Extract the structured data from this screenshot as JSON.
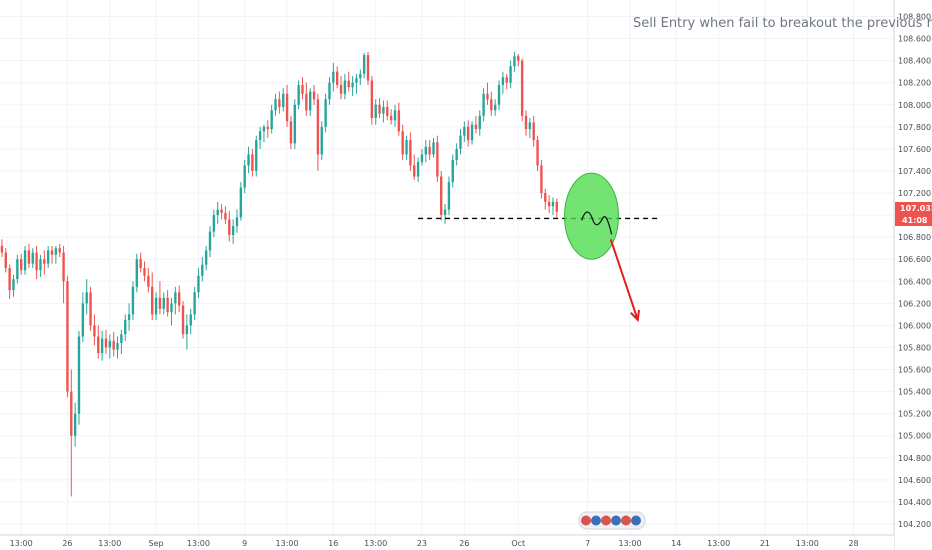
{
  "chart_data": {
    "type": "candlestick",
    "annotation": "Sell Entry when fail to breakout the previous resista",
    "price_tag": "107.032",
    "timer_tag": "41:08",
    "ylim": [
      104.1,
      108.95
    ],
    "yticks": [
      108.8,
      108.6,
      108.4,
      108.2,
      108.0,
      107.8,
      107.6,
      107.4,
      107.2,
      107.0,
      106.8,
      106.6,
      106.4,
      106.2,
      106.0,
      105.8,
      105.6,
      105.4,
      105.2,
      105.0,
      104.8,
      104.6,
      104.4,
      104.2
    ],
    "ytick_labels": [
      "108.800",
      "108.600",
      "108.400",
      "108.200",
      "108.000",
      "107.800",
      "107.600",
      "107.400",
      "107.200",
      "107.000",
      "106.800",
      "106.600",
      "106.400",
      "106.200",
      "106.000",
      "105.800",
      "105.600",
      "105.400",
      "105.200",
      "105.000",
      "104.800",
      "104.600",
      "104.400",
      "104.200"
    ],
    "xtick_labels": [
      "13:00",
      "26",
      "13:00",
      "Sep",
      "13:00",
      "9",
      "13:00",
      "16",
      "13:00",
      "23",
      "26",
      "Oct",
      "7",
      "13:00",
      "14",
      "13:00",
      "21",
      "13:00",
      "28"
    ],
    "xtick_index": [
      5,
      17,
      28,
      40,
      51,
      63,
      74,
      86,
      97,
      109,
      120,
      134,
      152,
      163,
      175,
      186,
      198,
      209,
      221
    ],
    "n_slots": 232,
    "support_level": 106.97,
    "arrow_from": [
      158,
      106.78
    ],
    "arrow_to": [
      165,
      106.05
    ],
    "ellipse_center": [
      153,
      106.99
    ],
    "ellipse_radius": [
      7,
      0.39
    ],
    "candles": [
      [
        106.72,
        106.78,
        106.62,
        106.66
      ],
      [
        106.66,
        106.7,
        106.48,
        106.52
      ],
      [
        106.52,
        106.55,
        106.24,
        106.32
      ],
      [
        106.32,
        106.46,
        106.26,
        106.42
      ],
      [
        106.42,
        106.64,
        106.38,
        106.6
      ],
      [
        106.6,
        106.65,
        106.46,
        106.5
      ],
      [
        106.5,
        106.72,
        106.46,
        106.68
      ],
      [
        106.68,
        106.74,
        106.52,
        106.56
      ],
      [
        106.56,
        106.7,
        106.52,
        106.66
      ],
      [
        106.66,
        106.72,
        106.42,
        106.5
      ],
      [
        106.5,
        106.64,
        106.44,
        106.6
      ],
      [
        106.6,
        106.68,
        106.46,
        106.56
      ],
      [
        106.56,
        106.72,
        106.52,
        106.68
      ],
      [
        106.68,
        106.72,
        106.56,
        106.64
      ],
      [
        106.64,
        106.72,
        106.56,
        106.7
      ],
      [
        106.7,
        106.74,
        106.62,
        106.66
      ],
      [
        106.66,
        106.72,
        106.2,
        106.4
      ],
      [
        106.4,
        106.45,
        105.35,
        105.4
      ],
      [
        105.4,
        105.6,
        104.45,
        105.0
      ],
      [
        105.0,
        105.3,
        104.9,
        105.2
      ],
      [
        105.2,
        105.95,
        105.1,
        105.9
      ],
      [
        105.9,
        106.3,
        105.85,
        106.2
      ],
      [
        106.2,
        106.42,
        106.1,
        106.3
      ],
      [
        106.3,
        106.35,
        105.95,
        106.0
      ],
      [
        106.0,
        106.1,
        105.82,
        105.9
      ],
      [
        105.9,
        106.0,
        105.7,
        105.75
      ],
      [
        105.75,
        105.95,
        105.68,
        105.88
      ],
      [
        105.88,
        105.96,
        105.74,
        105.8
      ],
      [
        105.8,
        105.92,
        105.7,
        105.86
      ],
      [
        105.86,
        105.94,
        105.72,
        105.78
      ],
      [
        105.78,
        105.9,
        105.7,
        105.84
      ],
      [
        105.84,
        105.96,
        105.74,
        105.92
      ],
      [
        105.92,
        106.1,
        105.86,
        106.05
      ],
      [
        106.05,
        106.2,
        105.95,
        106.1
      ],
      [
        106.1,
        106.4,
        106.05,
        106.35
      ],
      [
        106.35,
        106.65,
        106.3,
        106.6
      ],
      [
        106.6,
        106.66,
        106.48,
        106.52
      ],
      [
        106.52,
        106.58,
        106.4,
        106.45
      ],
      [
        106.45,
        106.52,
        106.3,
        106.35
      ],
      [
        106.35,
        106.48,
        106.05,
        106.1
      ],
      [
        106.1,
        106.3,
        106.05,
        106.25
      ],
      [
        106.25,
        106.4,
        106.1,
        106.15
      ],
      [
        106.15,
        106.3,
        106.1,
        106.25
      ],
      [
        106.25,
        106.32,
        106.08,
        106.12
      ],
      [
        106.12,
        106.25,
        106.0,
        106.2
      ],
      [
        106.2,
        106.35,
        106.1,
        106.3
      ],
      [
        106.3,
        106.36,
        106.12,
        106.18
      ],
      [
        106.18,
        106.22,
        105.88,
        105.92
      ],
      [
        105.92,
        106.1,
        105.78,
        106.0
      ],
      [
        106.0,
        106.15,
        105.92,
        106.1
      ],
      [
        106.1,
        106.35,
        106.05,
        106.3
      ],
      [
        106.3,
        106.52,
        106.25,
        106.45
      ],
      [
        106.45,
        106.62,
        106.4,
        106.55
      ],
      [
        106.55,
        106.72,
        106.5,
        106.68
      ],
      [
        106.68,
        106.9,
        106.62,
        106.85
      ],
      [
        106.85,
        107.05,
        106.8,
        107.0
      ],
      [
        107.0,
        107.12,
        106.92,
        107.05
      ],
      [
        107.05,
        107.1,
        106.96,
        107.02
      ],
      [
        107.02,
        107.08,
        106.92,
        106.96
      ],
      [
        106.96,
        107.04,
        106.76,
        106.82
      ],
      [
        106.82,
        106.96,
        106.74,
        106.9
      ],
      [
        106.9,
        107.05,
        106.84,
        106.98
      ],
      [
        106.98,
        107.3,
        106.95,
        107.25
      ],
      [
        107.25,
        107.5,
        107.2,
        107.45
      ],
      [
        107.45,
        107.62,
        107.38,
        107.55
      ],
      [
        107.55,
        107.6,
        107.35,
        107.4
      ],
      [
        107.4,
        107.72,
        107.35,
        107.68
      ],
      [
        107.68,
        107.8,
        107.6,
        107.76
      ],
      [
        107.76,
        107.82,
        107.66,
        107.8
      ],
      [
        107.8,
        107.86,
        107.7,
        107.78
      ],
      [
        107.78,
        108.0,
        107.74,
        107.95
      ],
      [
        107.95,
        108.1,
        107.9,
        108.05
      ],
      [
        108.05,
        108.12,
        107.92,
        107.98
      ],
      [
        107.98,
        108.15,
        107.94,
        108.1
      ],
      [
        108.1,
        108.18,
        107.8,
        107.85
      ],
      [
        107.85,
        107.9,
        107.6,
        107.65
      ],
      [
        107.65,
        108.05,
        107.6,
        108.0
      ],
      [
        108.0,
        108.22,
        107.96,
        108.18
      ],
      [
        108.18,
        108.25,
        108.05,
        108.1
      ],
      [
        108.1,
        108.2,
        107.9,
        107.95
      ],
      [
        107.95,
        108.15,
        107.9,
        108.12
      ],
      [
        108.12,
        108.18,
        108.0,
        108.05
      ],
      [
        108.05,
        108.1,
        107.4,
        107.55
      ],
      [
        107.55,
        107.85,
        107.5,
        107.8
      ],
      [
        107.8,
        108.1,
        107.75,
        108.05
      ],
      [
        108.05,
        108.25,
        108.0,
        108.2
      ],
      [
        108.2,
        108.38,
        108.12,
        108.3
      ],
      [
        108.3,
        108.35,
        108.15,
        108.18
      ],
      [
        108.18,
        108.26,
        108.05,
        108.1
      ],
      [
        108.1,
        108.28,
        108.05,
        108.22
      ],
      [
        108.22,
        108.3,
        108.12,
        108.16
      ],
      [
        108.16,
        108.26,
        108.08,
        108.2
      ],
      [
        108.2,
        108.28,
        108.1,
        108.24
      ],
      [
        108.24,
        108.32,
        108.18,
        108.28
      ],
      [
        108.28,
        108.47,
        108.24,
        108.45
      ],
      [
        108.45,
        108.48,
        108.18,
        108.22
      ],
      [
        108.22,
        108.26,
        107.82,
        107.88
      ],
      [
        107.88,
        108.05,
        107.82,
        108.0
      ],
      [
        108.0,
        108.06,
        107.88,
        107.92
      ],
      [
        107.92,
        108.04,
        107.84,
        107.98
      ],
      [
        107.98,
        108.04,
        107.86,
        107.9
      ],
      [
        107.9,
        107.96,
        107.82,
        107.86
      ],
      [
        107.86,
        108.0,
        107.8,
        107.95
      ],
      [
        107.95,
        108.02,
        107.72,
        107.76
      ],
      [
        107.76,
        107.82,
        107.5,
        107.55
      ],
      [
        107.55,
        107.72,
        107.5,
        107.68
      ],
      [
        107.68,
        107.75,
        107.4,
        107.45
      ],
      [
        107.45,
        107.55,
        107.32,
        107.35
      ],
      [
        107.35,
        107.52,
        107.3,
        107.48
      ],
      [
        107.48,
        107.6,
        107.45,
        107.55
      ],
      [
        107.55,
        107.68,
        107.48,
        107.62
      ],
      [
        107.62,
        107.68,
        107.5,
        107.55
      ],
      [
        107.55,
        107.7,
        107.52,
        107.66
      ],
      [
        107.66,
        107.72,
        107.3,
        107.35
      ],
      [
        107.35,
        107.4,
        106.95,
        107.0
      ],
      [
        107.0,
        107.1,
        106.92,
        107.05
      ],
      [
        107.05,
        107.35,
        107.0,
        107.3
      ],
      [
        107.3,
        107.55,
        107.25,
        107.5
      ],
      [
        107.5,
        107.65,
        107.45,
        107.6
      ],
      [
        107.6,
        107.78,
        107.55,
        107.72
      ],
      [
        107.72,
        107.85,
        107.66,
        107.8
      ],
      [
        107.8,
        107.86,
        107.62,
        107.68
      ],
      [
        107.68,
        107.85,
        107.64,
        107.82
      ],
      [
        107.82,
        107.9,
        107.74,
        107.78
      ],
      [
        107.78,
        107.95,
        107.72,
        107.9
      ],
      [
        107.9,
        108.15,
        107.85,
        108.1
      ],
      [
        108.1,
        108.2,
        108.0,
        108.05
      ],
      [
        108.05,
        108.12,
        107.9,
        107.95
      ],
      [
        107.95,
        108.05,
        107.9,
        108.0
      ],
      [
        108.0,
        108.22,
        107.95,
        108.18
      ],
      [
        108.18,
        108.3,
        108.1,
        108.25
      ],
      [
        108.25,
        108.28,
        108.14,
        108.2
      ],
      [
        108.2,
        108.4,
        108.15,
        108.35
      ],
      [
        108.35,
        108.48,
        108.3,
        108.44
      ],
      [
        108.44,
        108.46,
        108.35,
        108.4
      ],
      [
        108.4,
        108.42,
        107.85,
        107.9
      ],
      [
        107.9,
        107.95,
        107.72,
        107.78
      ],
      [
        107.78,
        107.88,
        107.7,
        107.84
      ],
      [
        107.84,
        107.9,
        107.62,
        107.68
      ],
      [
        107.68,
        107.72,
        107.4,
        107.45
      ],
      [
        107.45,
        107.5,
        107.15,
        107.2
      ],
      [
        107.2,
        107.24,
        107.05,
        107.12
      ],
      [
        107.12,
        107.18,
        107.02,
        107.08
      ],
      [
        107.08,
        107.16,
        107.0,
        107.12
      ],
      [
        107.12,
        107.15,
        106.98,
        107.03
      ]
    ]
  }
}
